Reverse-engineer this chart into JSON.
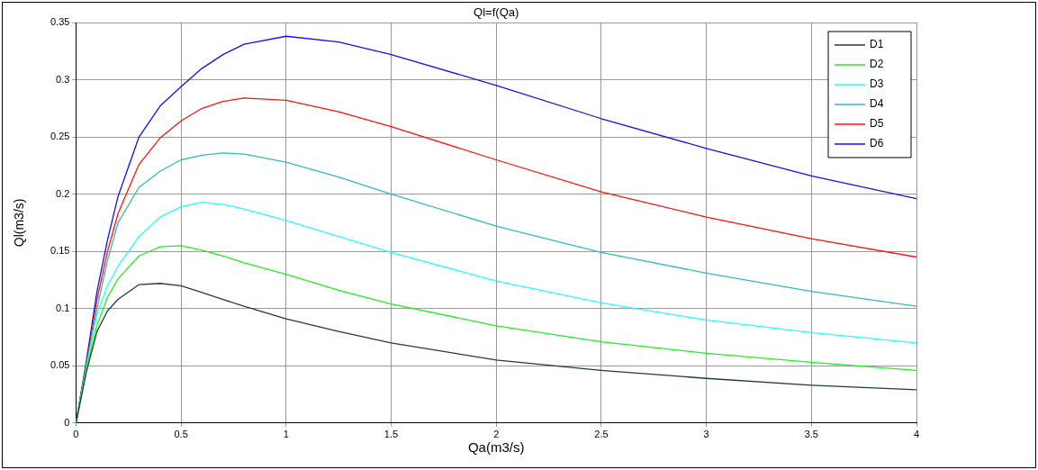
{
  "chart_data": {
    "type": "line",
    "title": "Ql=f(Qa)",
    "xlabel": "Qa(m3/s)",
    "ylabel": "Ql(m3/s)",
    "x": [
      0,
      0.05,
      0.1,
      0.15,
      0.2,
      0.3,
      0.4,
      0.5,
      0.6,
      0.7,
      0.8,
      1,
      1.25,
      1.5,
      2,
      2.5,
      3,
      3.5,
      4
    ],
    "series": [
      {
        "name": "D1",
        "color": "#1f4030",
        "values": [
          0,
          0.045,
          0.08,
          0.098,
          0.108,
          0.121,
          0.122,
          0.12,
          0.114,
          0.108,
          0.102,
          0.091,
          0.08,
          0.07,
          0.055,
          0.046,
          0.039,
          0.033,
          0.029
        ]
      },
      {
        "name": "D2",
        "color": "#22ee22",
        "values": [
          0,
          0.048,
          0.085,
          0.11,
          0.126,
          0.146,
          0.154,
          0.155,
          0.151,
          0.146,
          0.14,
          0.13,
          0.116,
          0.104,
          0.085,
          0.071,
          0.061,
          0.053,
          0.046
        ]
      },
      {
        "name": "D3",
        "color": "#22ffff",
        "values": [
          0,
          0.05,
          0.095,
          0.12,
          0.137,
          0.163,
          0.18,
          0.189,
          0.193,
          0.191,
          0.187,
          0.177,
          0.163,
          0.149,
          0.124,
          0.105,
          0.09,
          0.079,
          0.07
        ]
      },
      {
        "name": "D4",
        "color": "#33bbbb",
        "values": [
          0,
          0.05,
          0.1,
          0.142,
          0.175,
          0.206,
          0.22,
          0.23,
          0.234,
          0.236,
          0.235,
          0.228,
          0.215,
          0.2,
          0.172,
          0.149,
          0.131,
          0.115,
          0.102
        ]
      },
      {
        "name": "D5",
        "color": "#ff1111",
        "values": [
          0,
          0.052,
          0.108,
          0.15,
          0.183,
          0.226,
          0.249,
          0.264,
          0.275,
          0.281,
          0.284,
          0.282,
          0.272,
          0.259,
          0.23,
          0.202,
          0.18,
          0.161,
          0.145
        ]
      },
      {
        "name": "D6",
        "color": "#1111ee",
        "values": [
          0,
          0.055,
          0.115,
          0.16,
          0.198,
          0.25,
          0.277,
          0.294,
          0.31,
          0.322,
          0.331,
          0.338,
          0.333,
          0.322,
          0.295,
          0.266,
          0.24,
          0.216,
          0.196
        ]
      }
    ],
    "xlim": [
      0,
      4
    ],
    "xticks": [
      0,
      0.5,
      1,
      1.5,
      2,
      2.5,
      3,
      3.5,
      4
    ],
    "ylim": [
      0,
      0.35
    ],
    "yticks": [
      0,
      0.05,
      0.1,
      0.15,
      0.2,
      0.25,
      0.3,
      0.35
    ],
    "grid": true,
    "legend": "top right",
    "marker": "none",
    "line_style": "solid"
  }
}
